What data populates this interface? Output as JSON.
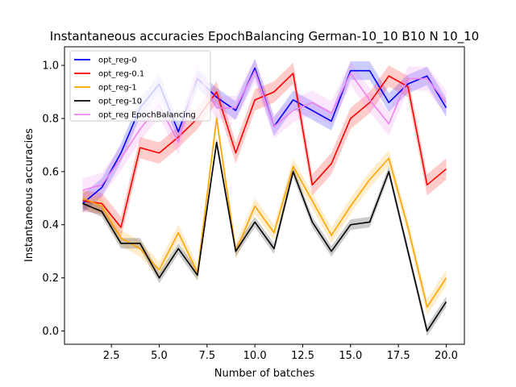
{
  "chart_data": {
    "type": "line",
    "title": "Instantaneous accuracies EpochBalancing German-10_10 B10 N 10_10",
    "xlabel": "Number of batches",
    "ylabel": "Instantaneous accuracies",
    "xlim": [
      0.05,
      20.95
    ],
    "ylim": [
      -0.05,
      1.07
    ],
    "xticks": [
      2.5,
      5.0,
      7.5,
      10.0,
      12.5,
      15.0,
      17.5,
      20.0
    ],
    "xtick_labels": [
      "2.5",
      "5.0",
      "7.5",
      "10.0",
      "12.5",
      "15.0",
      "17.5",
      "20.0"
    ],
    "yticks": [
      0.0,
      0.2,
      0.4,
      0.6,
      0.8,
      1.0
    ],
    "ytick_labels": [
      "0.0",
      "0.2",
      "0.4",
      "0.6",
      "0.8",
      "1.0"
    ],
    "grid": false,
    "legend_position": "top-left",
    "x": [
      1,
      2,
      3,
      4,
      5,
      6,
      7,
      8,
      9,
      10,
      11,
      12,
      13,
      14,
      15,
      16,
      17,
      18,
      19,
      20
    ],
    "series": [
      {
        "name": "opt_reg-0",
        "color": "#0000ff",
        "values": [
          0.48,
          0.54,
          0.67,
          0.84,
          0.93,
          0.75,
          0.95,
          0.88,
          0.83,
          0.99,
          0.77,
          0.87,
          0.83,
          0.79,
          0.98,
          0.98,
          0.86,
          0.93,
          0.96,
          0.84
        ],
        "band": 0.035
      },
      {
        "name": "opt_reg-0.1",
        "color": "#ff0000",
        "values": [
          0.49,
          0.48,
          0.39,
          0.69,
          0.67,
          0.73,
          0.8,
          0.9,
          0.67,
          0.87,
          0.9,
          0.97,
          0.55,
          0.63,
          0.8,
          0.86,
          0.96,
          0.92,
          0.55,
          0.61
        ],
        "band": 0.04
      },
      {
        "name": "opt_reg-1",
        "color": "#ffa500",
        "values": [
          0.5,
          0.47,
          0.35,
          0.31,
          0.23,
          0.37,
          0.22,
          0.8,
          0.3,
          0.47,
          0.37,
          0.62,
          0.49,
          0.36,
          0.47,
          0.57,
          0.65,
          0.39,
          0.09,
          0.2
        ],
        "band": 0.03
      },
      {
        "name": "opt_reg-10",
        "color": "#000000",
        "values": [
          0.48,
          0.45,
          0.33,
          0.33,
          0.2,
          0.31,
          0.21,
          0.71,
          0.3,
          0.41,
          0.31,
          0.6,
          0.41,
          0.3,
          0.4,
          0.41,
          0.6,
          0.3,
          0.0,
          0.11
        ],
        "band": 0.02
      },
      {
        "name": "opt_reg EpochBalancing",
        "color": "#ee82ee",
        "values": [
          0.53,
          0.55,
          0.65,
          0.76,
          0.85,
          0.71,
          0.97,
          0.84,
          0.84,
          0.98,
          0.77,
          0.83,
          0.86,
          0.82,
          0.97,
          0.87,
          0.78,
          0.95,
          0.95,
          0.86
        ],
        "band": 0.045
      }
    ]
  }
}
